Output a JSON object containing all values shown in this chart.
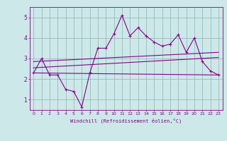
{
  "xlabel": "Windchill (Refroidissement éolien,°C)",
  "bg_color": "#cce8e8",
  "line_color": "#880088",
  "grid_color": "#99bbbb",
  "spine_color": "#880088",
  "xlim": [
    -0.5,
    23.5
  ],
  "ylim": [
    0.5,
    5.5
  ],
  "xticks": [
    0,
    1,
    2,
    3,
    4,
    5,
    6,
    7,
    8,
    9,
    10,
    11,
    12,
    13,
    14,
    15,
    16,
    17,
    18,
    19,
    20,
    21,
    22,
    23
  ],
  "yticks": [
    1,
    2,
    3,
    4,
    5
  ],
  "series1_x": [
    0,
    1,
    2,
    3,
    4,
    5,
    6,
    7,
    8,
    9,
    10,
    11,
    12,
    13,
    14,
    15,
    16,
    17,
    18,
    19,
    20,
    21,
    22,
    23
  ],
  "series1_y": [
    2.3,
    3.0,
    2.2,
    2.2,
    1.5,
    1.4,
    0.65,
    2.3,
    3.5,
    3.5,
    4.2,
    5.1,
    4.1,
    4.5,
    4.1,
    3.8,
    3.6,
    3.7,
    4.15,
    3.3,
    4.0,
    2.85,
    2.4,
    2.2
  ],
  "series2_x": [
    0,
    23
  ],
  "series2_y": [
    2.3,
    2.2
  ],
  "series3_x": [
    0,
    23
  ],
  "series3_y": [
    2.55,
    3.05
  ],
  "series4_x": [
    0,
    23
  ],
  "series4_y": [
    2.85,
    3.3
  ]
}
